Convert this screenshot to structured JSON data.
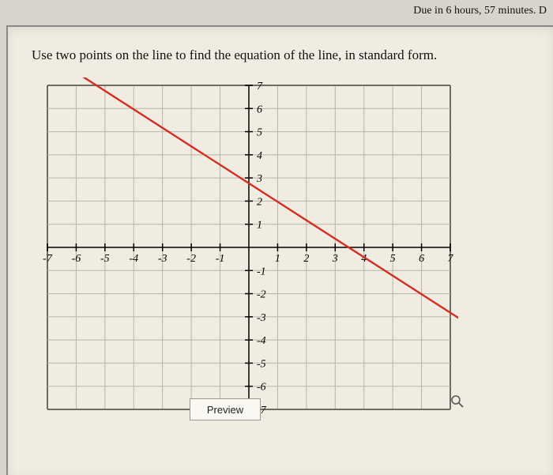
{
  "header": {
    "due_text": "Due in 6 hours, 57 minutes. D"
  },
  "prompt": "Use two points on the line to find the equation of the line, in standard form.",
  "chart": {
    "type": "line",
    "xlim": [
      -7,
      7
    ],
    "ylim": [
      -7,
      7
    ],
    "xtick_step": 1,
    "ytick_step": 1,
    "x_tick_labels": [
      "-7",
      "-6",
      "-5",
      "-4",
      "-3",
      "-2",
      "-1",
      "1",
      "2",
      "3",
      "4",
      "5",
      "6",
      "7"
    ],
    "y_tick_labels": [
      "-7",
      "-6",
      "-5",
      "-4",
      "-3",
      "-2",
      "-1",
      "1",
      "2",
      "3",
      "4",
      "5",
      "6",
      "7"
    ],
    "grid_color": "#b7b4a9",
    "grid_edge_color": "#6e6b63",
    "axis_color": "#000000",
    "background_color": "#f0ece2",
    "line_color": "#d42e24",
    "line_width": 2.4,
    "line_points": [
      [
        -6.3,
        7.8
      ],
      [
        7.6,
        -3.3
      ]
    ],
    "tick_fontsize": 14,
    "tick_fontstyle": "italic",
    "tick_fontfamily": "Times New Roman"
  },
  "controls": {
    "preview_label": "Preview"
  },
  "icons": {
    "magnifier": "magnifier-icon"
  }
}
